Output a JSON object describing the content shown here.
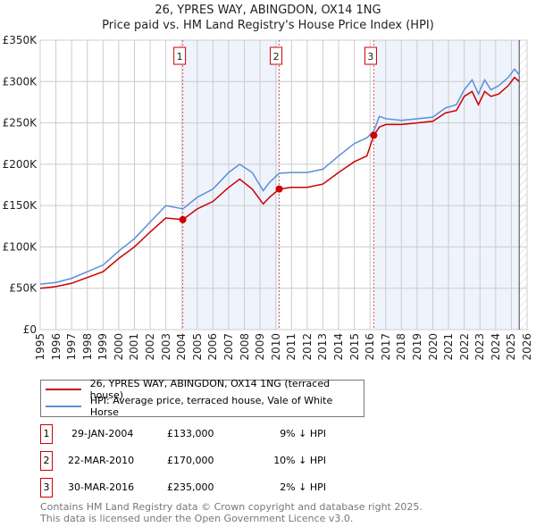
{
  "title": "26, YPRES WAY, ABINGDON, OX14 1NG",
  "subtitle": "Price paid vs. HM Land Registry's House Price Index (HPI)",
  "chart_data": {
    "type": "line",
    "xlim": [
      1995,
      2026
    ],
    "ylim": [
      0,
      350000
    ],
    "yticks": [
      {
        "v": 0,
        "l": "£0"
      },
      {
        "v": 50000,
        "l": "£50K"
      },
      {
        "v": 100000,
        "l": "£100K"
      },
      {
        "v": 150000,
        "l": "£150K"
      },
      {
        "v": 200000,
        "l": "£200K"
      },
      {
        "v": 250000,
        "l": "£250K"
      },
      {
        "v": 300000,
        "l": "£300K"
      },
      {
        "v": 350000,
        "l": "£350K"
      }
    ],
    "xticks": [
      "1995",
      "1996",
      "1997",
      "1998",
      "1999",
      "2000",
      "2001",
      "2002",
      "2003",
      "2004",
      "2005",
      "2006",
      "2007",
      "2008",
      "2009",
      "2010",
      "2011",
      "2012",
      "2013",
      "2014",
      "2015",
      "2016",
      "2017",
      "2018",
      "2019",
      "2020",
      "2021",
      "2022",
      "2023",
      "2024",
      "2025",
      "2026"
    ],
    "series": [
      {
        "name": "26, YPRES WAY, ABINGDON, OX14 1NG (terraced house)",
        "color": "#cc0000",
        "x": [
          1995,
          1996,
          1997,
          1998,
          1999,
          2000,
          2001,
          2002,
          2003,
          2004.08,
          2005,
          2006,
          2007,
          2007.7,
          2008.5,
          2009.2,
          2009.6,
          2010.22,
          2011,
          2012,
          2013,
          2014,
          2015,
          2015.8,
          2016.24,
          2016.6,
          2017,
          2018,
          2019,
          2020,
          2020.8,
          2021.5,
          2022,
          2022.5,
          2022.9,
          2023.3,
          2023.7,
          2024.2,
          2024.8,
          2025.2,
          2025.5
        ],
        "y": [
          50000,
          52000,
          56000,
          63000,
          70000,
          86000,
          100000,
          118000,
          135000,
          133000,
          146000,
          155000,
          172000,
          182000,
          170000,
          152000,
          160000,
          170000,
          172000,
          172000,
          176000,
          190000,
          203000,
          210000,
          235000,
          245000,
          248000,
          248000,
          250000,
          252000,
          262000,
          265000,
          282000,
          288000,
          272000,
          288000,
          282000,
          285000,
          295000,
          305000,
          300000
        ]
      },
      {
        "name": "HPI: Average price, terraced house, Vale of White Horse",
        "color": "#5b8fd6",
        "x": [
          1995,
          1996,
          1997,
          1998,
          1999,
          2000,
          2001,
          2002,
          2003,
          2004.08,
          2005,
          2006,
          2007,
          2007.7,
          2008.5,
          2009.2,
          2009.6,
          2010.22,
          2011,
          2012,
          2013,
          2014,
          2015,
          2015.8,
          2016.24,
          2016.6,
          2017,
          2018,
          2019,
          2020,
          2020.8,
          2021.5,
          2022,
          2022.5,
          2022.9,
          2023.3,
          2023.7,
          2024.2,
          2024.8,
          2025.2,
          2025.5
        ],
        "y": [
          55000,
          57000,
          62000,
          70000,
          78000,
          95000,
          110000,
          130000,
          150000,
          146000,
          160000,
          170000,
          190000,
          200000,
          190000,
          168000,
          178000,
          189000,
          190000,
          190000,
          194000,
          210000,
          225000,
          232000,
          240000,
          258000,
          255000,
          253000,
          255000,
          257000,
          268000,
          272000,
          290000,
          302000,
          285000,
          302000,
          290000,
          295000,
          305000,
          315000,
          308000
        ]
      }
    ],
    "sales": [
      {
        "n": "1",
        "x": 2004.08,
        "y": 133000
      },
      {
        "n": "2",
        "x": 2010.22,
        "y": 170000
      },
      {
        "n": "3",
        "x": 2016.24,
        "y": 235000
      }
    ]
  },
  "legend": [
    "26, YPRES WAY, ABINGDON, OX14 1NG (terraced house)",
    "HPI: Average price, terraced house, Vale of White Horse"
  ],
  "table": [
    {
      "n": "1",
      "date": "29-JAN-2004",
      "price": "£133,000",
      "hpi": "9% ↓ HPI"
    },
    {
      "n": "2",
      "date": "22-MAR-2010",
      "price": "£170,000",
      "hpi": "10% ↓ HPI"
    },
    {
      "n": "3",
      "date": "30-MAR-2016",
      "price": "£235,000",
      "hpi": "2% ↓ HPI"
    }
  ],
  "footer": [
    "Contains HM Land Registry data © Crown copyright and database right 2025.",
    "This data is licensed under the Open Government Licence v3.0."
  ]
}
